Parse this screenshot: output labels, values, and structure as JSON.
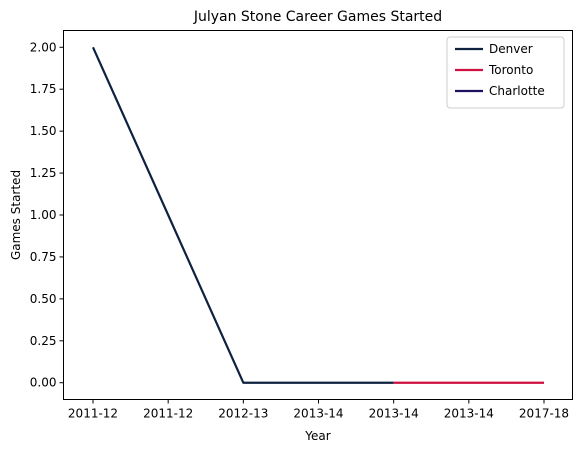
{
  "chart_data": {
    "type": "line",
    "title": "Julyan Stone Career Games Started",
    "xlabel": "Year",
    "ylabel": "Games Started",
    "categories": [
      "2011-12",
      "2011-12",
      "2012-13",
      "2013-14",
      "2013-14",
      "2013-14",
      "2017-18"
    ],
    "ylim": [
      -0.1,
      2.1
    ],
    "yticks": [
      0.0,
      0.25,
      0.5,
      0.75,
      1.0,
      1.25,
      1.5,
      1.75,
      2.0
    ],
    "ytick_labels": [
      "0.00",
      "0.25",
      "0.50",
      "0.75",
      "1.00",
      "1.25",
      "1.50",
      "1.75",
      "2.00"
    ],
    "grid": false,
    "legend_position": "top-right",
    "series": [
      {
        "name": "Denver",
        "color": "#0e2240",
        "points": [
          [
            0,
            2
          ],
          [
            1,
            1
          ],
          [
            2,
            0
          ],
          [
            3,
            0
          ],
          [
            4,
            0
          ]
        ]
      },
      {
        "name": "Toronto",
        "color": "#ce1141",
        "points": [
          [
            4,
            0
          ],
          [
            5,
            0
          ],
          [
            6,
            0
          ]
        ]
      },
      {
        "name": "Charlotte",
        "color": "#1d1160",
        "points": []
      }
    ]
  }
}
